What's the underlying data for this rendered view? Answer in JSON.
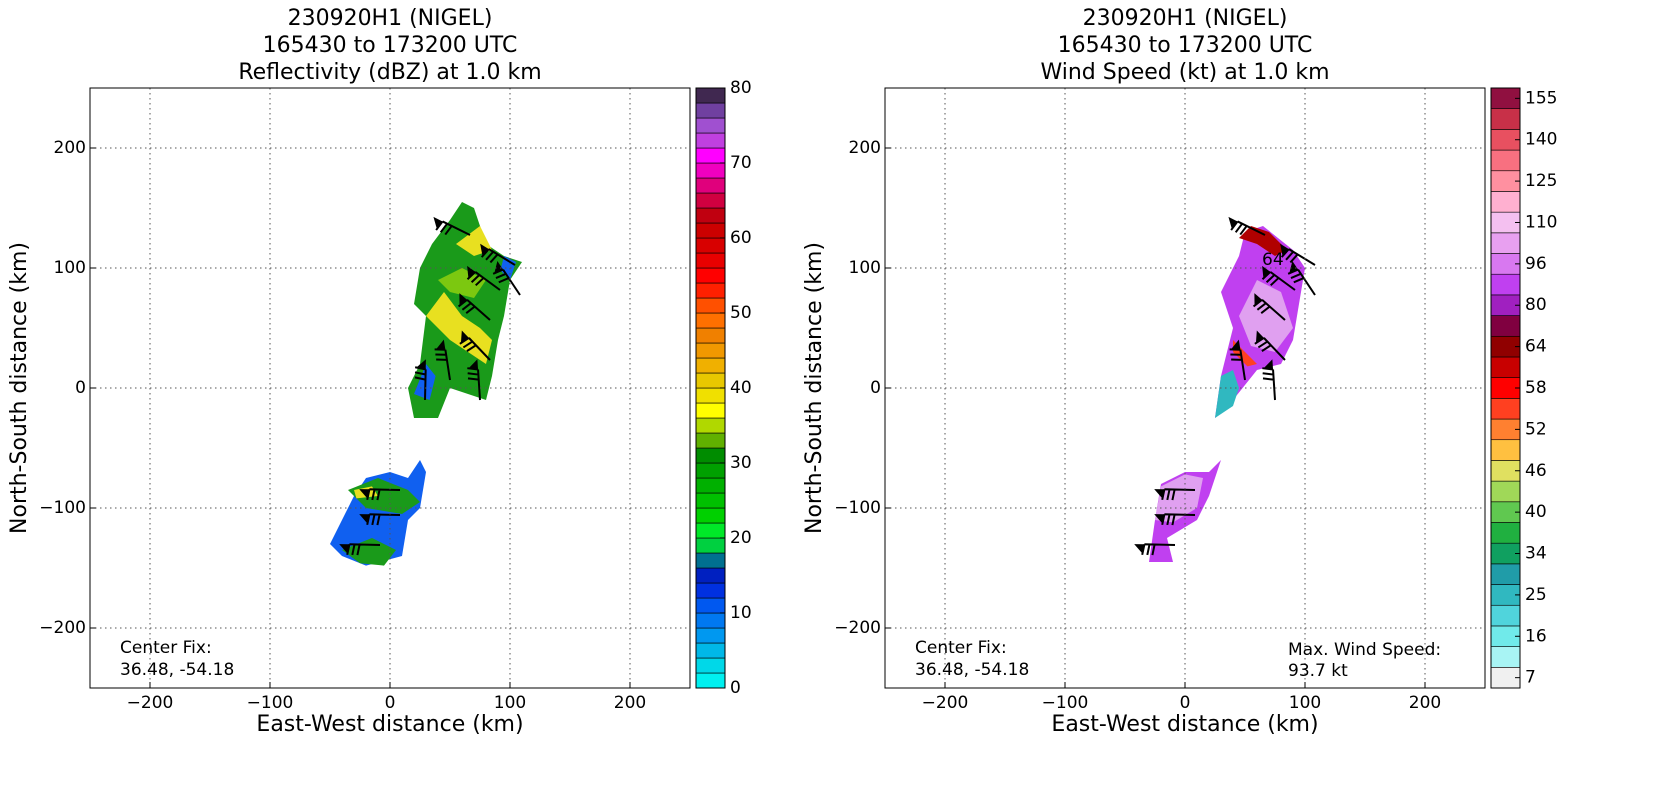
{
  "chart_data": [
    {
      "type": "radar-map",
      "title": [
        "230920H1 (NIGEL)",
        "165430 to 173200 UTC",
        "Reflectivity (dBZ) at 1.0 km"
      ],
      "xlabel": "East-West distance (km)",
      "ylabel": "North-South distance (km)",
      "xlim": [
        -250,
        250
      ],
      "ylim": [
        -250,
        250
      ],
      "xticks": [
        {
          "value": -200,
          "label": "−200"
        },
        {
          "value": -100,
          "label": "−100"
        },
        0,
        100,
        200
      ],
      "yticks": [
        {
          "value": -200,
          "label": "−200"
        },
        {
          "value": -100,
          "label": "−100"
        },
        0,
        100,
        200
      ],
      "grid": true,
      "annotations": [
        "Center Fix:",
        "36.48, -54.18"
      ],
      "colorbar": {
        "lim": [
          0,
          80
        ],
        "ticks": [
          0,
          10,
          20,
          30,
          40,
          50,
          60,
          70,
          80
        ],
        "colors": [
          "#00f0f0",
          "#00d8e8",
          "#00b8e8",
          "#0098f0",
          "#0078f0",
          "#0058f0",
          "#0030e0",
          "#0020c0",
          "#007090",
          "#00d040",
          "#00e828",
          "#00d000",
          "#00c000",
          "#00b000",
          "#00a000",
          "#008c00",
          "#60b000",
          "#b0d800",
          "#ffff00",
          "#f0e000",
          "#e8c800",
          "#f0b000",
          "#f09800",
          "#f08000",
          "#ff7000",
          "#ff5000",
          "#ff2000",
          "#ff0000",
          "#e80000",
          "#d80000",
          "#cc0000",
          "#c00010",
          "#d00040",
          "#e0007c",
          "#f000c0",
          "#ff00ff",
          "#c040e0",
          "#a050d0",
          "#7040a0",
          "#402850"
        ]
      }
    },
    {
      "type": "radar-map",
      "title": [
        "230920H1 (NIGEL)",
        "165430 to 173200 UTC",
        "Wind Speed (kt) at 1.0 km"
      ],
      "xlabel": "East-West distance (km)",
      "ylabel": "North-South distance (km)",
      "xlim": [
        -250,
        250
      ],
      "ylim": [
        -250,
        250
      ],
      "xticks": [
        {
          "value": -200,
          "label": "−200"
        },
        {
          "value": -100,
          "label": "−100"
        },
        0,
        100,
        200
      ],
      "yticks": [
        {
          "value": -200,
          "label": "−200"
        },
        {
          "value": -100,
          "label": "−100"
        },
        0,
        100,
        200
      ],
      "grid": true,
      "annotations": [
        "Center Fix:",
        "36.48, -54.18"
      ],
      "max_wind": [
        "Max. Wind Speed:",
        "93.7 kt"
      ],
      "contour_label": "64",
      "colorbar": {
        "ticks": [
          7,
          16,
          25,
          34,
          40,
          46,
          52,
          58,
          64,
          80,
          96,
          110,
          125,
          140,
          155
        ],
        "colors": [
          "#f0f0f0",
          "#a8f4f4",
          "#70eaea",
          "#50d4dc",
          "#30b8c0",
          "#209ca8",
          "#10a060",
          "#20b040",
          "#60c850",
          "#a0d858",
          "#e0e060",
          "#ffc040",
          "#ff8030",
          "#ff4020",
          "#ff0000",
          "#c80000",
          "#900000",
          "#800040",
          "#a020c0",
          "#c040f0",
          "#d878f0",
          "#e8a0f0",
          "#f4c0f0",
          "#ffb0d0",
          "#ff90a0",
          "#f87080",
          "#e85060",
          "#c83048",
          "#901040"
        ]
      }
    }
  ]
}
